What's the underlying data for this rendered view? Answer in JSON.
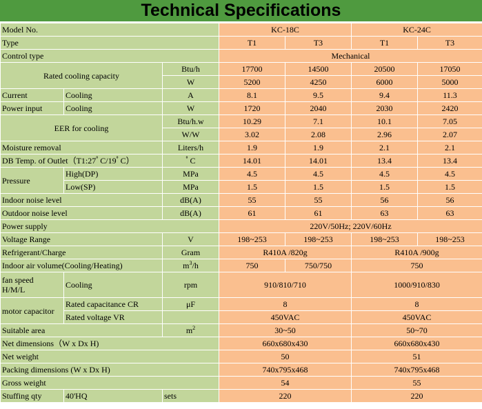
{
  "title": "Technical Specifications",
  "rows": {
    "model_no": "Model No.",
    "model_a": "KC-18C",
    "model_b": "KC-24C",
    "type": "Type",
    "t1": "T1",
    "t3": "T3",
    "control_type": "Control type",
    "mechanical": "Mechanical",
    "rated_cooling": "Rated cooling capacity",
    "btuh": "Btu/h",
    "w": "W",
    "cap_btu": [
      "17700",
      "14500",
      "20500",
      "17050"
    ],
    "cap_w": [
      "5200",
      "4250",
      "6000",
      "5000"
    ],
    "current": "Current",
    "cooling": "Cooling",
    "a": "A",
    "current_vals": [
      "8.1",
      "9.5",
      "9.4",
      "11.3"
    ],
    "power_input": "Power input",
    "power_vals": [
      "1720",
      "2040",
      "2030",
      "2420"
    ],
    "eer": "EER for cooling",
    "btuhw": "Btu/h.w",
    "ww": "W/W",
    "eer_btu": [
      "10.29",
      "7.1",
      "10.1",
      "7.05"
    ],
    "eer_ww": [
      "3.02",
      "2.08",
      "2.96",
      "2.07"
    ],
    "moisture": "Moisture removal",
    "litersh": "Liters/h",
    "moisture_vals": [
      "1.9",
      "1.9",
      "2.1",
      "2.1"
    ],
    "db_temp": "DB Temp. of Outlet（T1:27ﾟC/19ﾟC）",
    "deg_c": "ﾟC",
    "db_vals": [
      "14.01",
      "14.01",
      "13.4",
      "13.4"
    ],
    "pressure": "Pressure",
    "high_dp": "High(DP)",
    "low_sp": "Low(SP)",
    "mpa": "MPa",
    "high_vals": [
      "4.5",
      "4.5",
      "4.5",
      "4.5"
    ],
    "low_vals": [
      "1.5",
      "1.5",
      "1.5",
      "1.5"
    ],
    "indoor_noise": "Indoor noise level",
    "outdoor_noise": "Outdoor noise level",
    "dba": "dB(A)",
    "indoor_vals": [
      "55",
      "55",
      "56",
      "56"
    ],
    "outdoor_vals": [
      "61",
      "61",
      "63",
      "63"
    ],
    "power_supply": "Power supply",
    "power_supply_val": "220V/50Hz; 220V/60Hz",
    "voltage_range": "Voltage Range",
    "v": "V",
    "voltage_vals": [
      "198~253",
      "198~253",
      "198~253",
      "198~253"
    ],
    "refrigerant": "Refrigerant/Charge",
    "gram": "Gram",
    "refrigerant_a": "R410A /820g",
    "refrigerant_b": "R410A /900g",
    "indoor_air": "Indoor air volume(Cooling/Heating)",
    "m3h": "m",
    "m3h_sup": "3",
    "m3h_tail": "/h",
    "air_vals": [
      "750",
      "750/750",
      "750"
    ],
    "fan_speed_1": "fan speed",
    "fan_speed_2": "H/M/L",
    "rpm": "rpm",
    "fan_a": "910/810/710",
    "fan_b": "1000/910/830",
    "motor_cap": "motor capacitor",
    "rated_cr": "Rated capacitance CR",
    "uf": "μF",
    "cr_a": "8",
    "cr_b": "8",
    "rated_vr": "Rated voltage VR",
    "vr_a": "450VAC",
    "vr_b": "450VAC",
    "suitable_area": "Suitable area",
    "m2": "m",
    "m2_sup": "2",
    "area_a": "30~50",
    "area_b": "50~70",
    "net_dim": "Net dimensions（W x Dx H)",
    "net_dim_a": "660x680x430",
    "net_dim_b": "660x680x430",
    "net_weight": "Net weight",
    "net_weight_a": "50",
    "net_weight_b": "51",
    "pack_dim": "Packing dimensions (W x Dx H)",
    "pack_dim_a": "740x795x468",
    "pack_dim_b": "740x795x468",
    "gross_weight": "Gross weight",
    "gross_a": "54",
    "gross_b": "55",
    "stuffing": "Stuffing qty",
    "hq": "40'HQ",
    "sets": "sets",
    "stuff_a": "220",
    "stuff_b": "220"
  },
  "colors": {
    "title_bg": "#4f9a3f",
    "label_bg": "#c2d69b",
    "value_bg": "#fabf8f"
  }
}
